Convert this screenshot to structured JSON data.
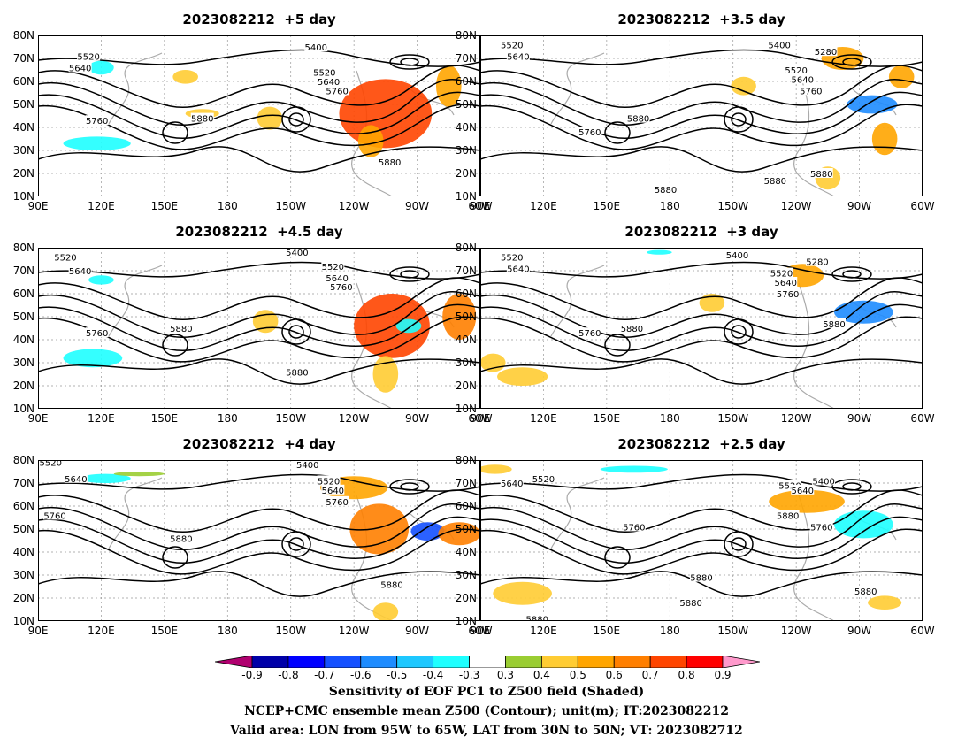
{
  "panels": [
    {
      "title": "2023082212  +5 day",
      "contour_labels": [
        {
          "text": "5520",
          "lon": 114,
          "lat": 71
        },
        {
          "text": "5640",
          "lon": 110,
          "lat": 66
        },
        {
          "text": "5760",
          "lon": 118,
          "lat": 43
        },
        {
          "text": "5880",
          "lon": 168,
          "lat": 44
        },
        {
          "text": "5400",
          "lon": 222,
          "lat": 75
        },
        {
          "text": "5520",
          "lon": 226,
          "lat": 64
        },
        {
          "text": "5640",
          "lon": 228,
          "lat": 60
        },
        {
          "text": "5760",
          "lon": 232,
          "lat": 56
        },
        {
          "text": "5880",
          "lon": 257,
          "lat": 25
        }
      ],
      "shading": [
        {
          "lon": 255,
          "lat": 46,
          "w": 22,
          "h": 30,
          "value": 0.7
        },
        {
          "lon": 248,
          "lat": 34,
          "w": 6,
          "h": 14,
          "value": 0.5
        },
        {
          "lon": 118,
          "lat": 33,
          "w": 16,
          "h": 6,
          "value": -0.4
        },
        {
          "lon": 120,
          "lat": 66,
          "w": 6,
          "h": 6,
          "value": -0.4
        },
        {
          "lon": 168,
          "lat": 46,
          "w": 8,
          "h": 4,
          "value": 0.4
        },
        {
          "lon": 200,
          "lat": 44,
          "w": 6,
          "h": 10,
          "value": 0.4
        },
        {
          "lon": 285,
          "lat": 58,
          "w": 6,
          "h": 18,
          "value": 0.5
        },
        {
          "lon": 160,
          "lat": 62,
          "w": 6,
          "h": 6,
          "value": 0.4
        }
      ]
    },
    {
      "title": "2023082212  +3.5 day",
      "contour_labels": [
        {
          "text": "5520",
          "lon": 105,
          "lat": 76
        },
        {
          "text": "5640",
          "lon": 108,
          "lat": 71
        },
        {
          "text": "5760",
          "lon": 142,
          "lat": 38
        },
        {
          "text": "5880",
          "lon": 165,
          "lat": 44
        },
        {
          "text": "5400",
          "lon": 232,
          "lat": 76
        },
        {
          "text": "5520",
          "lon": 240,
          "lat": 65
        },
        {
          "text": "5640",
          "lon": 243,
          "lat": 61
        },
        {
          "text": "5760",
          "lon": 247,
          "lat": 56
        },
        {
          "text": "5280",
          "lon": 254,
          "lat": 73
        },
        {
          "text": "5880",
          "lon": 230,
          "lat": 17
        },
        {
          "text": "5880",
          "lon": 178,
          "lat": 13
        },
        {
          "text": "5880",
          "lon": 252,
          "lat": 20
        }
      ],
      "shading": [
        {
          "lon": 276,
          "lat": 50,
          "w": 12,
          "h": 8,
          "value": -0.6
        },
        {
          "lon": 262,
          "lat": 70,
          "w": 10,
          "h": 10,
          "value": 0.5
        },
        {
          "lon": 215,
          "lat": 58,
          "w": 6,
          "h": 8,
          "value": 0.4
        },
        {
          "lon": 282,
          "lat": 35,
          "w": 6,
          "h": 14,
          "value": 0.5
        },
        {
          "lon": 255,
          "lat": 18,
          "w": 6,
          "h": 10,
          "value": 0.4
        },
        {
          "lon": 290,
          "lat": 62,
          "w": 6,
          "h": 10,
          "value": 0.5
        }
      ]
    },
    {
      "title": "2023082212  +4.5 day",
      "contour_labels": [
        {
          "text": "5520",
          "lon": 103,
          "lat": 76
        },
        {
          "text": "5640",
          "lon": 110,
          "lat": 70
        },
        {
          "text": "5760",
          "lon": 118,
          "lat": 43
        },
        {
          "text": "5880",
          "lon": 158,
          "lat": 45
        },
        {
          "text": "5400",
          "lon": 213,
          "lat": 78
        },
        {
          "text": "5520",
          "lon": 230,
          "lat": 72
        },
        {
          "text": "5640",
          "lon": 232,
          "lat": 67
        },
        {
          "text": "5760",
          "lon": 234,
          "lat": 63
        },
        {
          "text": "5880",
          "lon": 213,
          "lat": 26
        }
      ],
      "shading": [
        {
          "lon": 258,
          "lat": 46,
          "w": 18,
          "h": 28,
          "value": 0.7
        },
        {
          "lon": 255,
          "lat": 25,
          "w": 6,
          "h": 16,
          "value": 0.4
        },
        {
          "lon": 116,
          "lat": 32,
          "w": 14,
          "h": 8,
          "value": -0.4
        },
        {
          "lon": 120,
          "lat": 66,
          "w": 6,
          "h": 4,
          "value": -0.4
        },
        {
          "lon": 198,
          "lat": 48,
          "w": 6,
          "h": 10,
          "value": 0.4
        },
        {
          "lon": 290,
          "lat": 50,
          "w": 8,
          "h": 20,
          "value": 0.6
        },
        {
          "lon": 266,
          "lat": 46,
          "w": 6,
          "h": 6,
          "value": -0.4
        }
      ]
    },
    {
      "title": "2023082212  +3 day",
      "contour_labels": [
        {
          "text": "5520",
          "lon": 105,
          "lat": 76
        },
        {
          "text": "5640",
          "lon": 108,
          "lat": 71
        },
        {
          "text": "5760",
          "lon": 142,
          "lat": 43
        },
        {
          "text": "5880",
          "lon": 162,
          "lat": 45
        },
        {
          "text": "5400",
          "lon": 212,
          "lat": 77
        },
        {
          "text": "5520",
          "lon": 233,
          "lat": 69
        },
        {
          "text": "5640",
          "lon": 235,
          "lat": 65
        },
        {
          "text": "5760",
          "lon": 236,
          "lat": 60
        },
        {
          "text": "5280",
          "lon": 250,
          "lat": 74
        },
        {
          "text": "5880",
          "lon": 258,
          "lat": 47
        }
      ],
      "shading": [
        {
          "lon": 272,
          "lat": 52,
          "w": 14,
          "h": 10,
          "value": -0.6
        },
        {
          "lon": 243,
          "lat": 68,
          "w": 10,
          "h": 10,
          "value": 0.5
        },
        {
          "lon": 200,
          "lat": 56,
          "w": 6,
          "h": 8,
          "value": 0.4
        },
        {
          "lon": 110,
          "lat": 24,
          "w": 12,
          "h": 8,
          "value": 0.4
        },
        {
          "lon": 96,
          "lat": 30,
          "w": 6,
          "h": 8,
          "value": 0.4
        },
        {
          "lon": 175,
          "lat": 78,
          "w": 6,
          "h": 2,
          "value": -0.4
        }
      ]
    },
    {
      "title": "2023082212  +4 day",
      "contour_labels": [
        {
          "text": "5520",
          "lon": 96,
          "lat": 79
        },
        {
          "text": "5640",
          "lon": 108,
          "lat": 72
        },
        {
          "text": "5760",
          "lon": 98,
          "lat": 56
        },
        {
          "text": "5880",
          "lon": 158,
          "lat": 46
        },
        {
          "text": "5400",
          "lon": 218,
          "lat": 78
        },
        {
          "text": "5520",
          "lon": 228,
          "lat": 71
        },
        {
          "text": "5640",
          "lon": 230,
          "lat": 67
        },
        {
          "text": "5760",
          "lon": 232,
          "lat": 62
        },
        {
          "text": "5880",
          "lon": 258,
          "lat": 26
        }
      ],
      "shading": [
        {
          "lon": 252,
          "lat": 50,
          "w": 14,
          "h": 22,
          "value": 0.6
        },
        {
          "lon": 275,
          "lat": 49,
          "w": 8,
          "h": 8,
          "value": -0.7
        },
        {
          "lon": 122,
          "lat": 72,
          "w": 12,
          "h": 4,
          "value": -0.4
        },
        {
          "lon": 290,
          "lat": 48,
          "w": 10,
          "h": 10,
          "value": 0.6
        },
        {
          "lon": 240,
          "lat": 68,
          "w": 16,
          "h": 10,
          "value": 0.5
        },
        {
          "lon": 255,
          "lat": 14,
          "w": 6,
          "h": 8,
          "value": 0.4
        },
        {
          "lon": 138,
          "lat": 74,
          "w": 12,
          "h": 2,
          "value": 0.3
        }
      ]
    },
    {
      "title": "2023082212  +2.5 day",
      "contour_labels": [
        {
          "text": "5520",
          "lon": 120,
          "lat": 72
        },
        {
          "text": "5640",
          "lon": 105,
          "lat": 70
        },
        {
          "text": "5760",
          "lon": 163,
          "lat": 51
        },
        {
          "text": "5880",
          "lon": 236,
          "lat": 56
        },
        {
          "text": "5400",
          "lon": 253,
          "lat": 71
        },
        {
          "text": "5520",
          "lon": 237,
          "lat": 69
        },
        {
          "text": "5640",
          "lon": 243,
          "lat": 67
        },
        {
          "text": "5760",
          "lon": 252,
          "lat": 51
        },
        {
          "text": "5880",
          "lon": 195,
          "lat": 29
        },
        {
          "text": "5880",
          "lon": 190,
          "lat": 18
        },
        {
          "text": "5880",
          "lon": 273,
          "lat": 23
        },
        {
          "text": "5880",
          "lon": 117,
          "lat": 11
        }
      ],
      "shading": [
        {
          "lon": 272,
          "lat": 52,
          "w": 14,
          "h": 12,
          "value": -0.4
        },
        {
          "lon": 245,
          "lat": 62,
          "w": 18,
          "h": 10,
          "value": 0.5
        },
        {
          "lon": 163,
          "lat": 76,
          "w": 16,
          "h": 3,
          "value": -0.4
        },
        {
          "lon": 110,
          "lat": 22,
          "w": 14,
          "h": 10,
          "value": 0.4
        },
        {
          "lon": 97,
          "lat": 76,
          "w": 8,
          "h": 4,
          "value": 0.4
        },
        {
          "lon": 282,
          "lat": 18,
          "w": 8,
          "h": 6,
          "value": 0.4
        }
      ]
    }
  ],
  "lon_ticks": [
    "90E",
    "120E",
    "150E",
    "180",
    "150W",
    "120W",
    "90W",
    "60W"
  ],
  "lat_ticks": [
    "80N",
    "70N",
    "60N",
    "50N",
    "40N",
    "30N",
    "20N",
    "10N"
  ],
  "colorbar": {
    "labels": [
      "-0.9",
      "-0.8",
      "-0.7",
      "-0.6",
      "-0.5",
      "-0.4",
      "-0.3",
      "0.3",
      "0.4",
      "0.5",
      "0.6",
      "0.7",
      "0.8",
      "0.9"
    ],
    "colors": [
      "#b0006f",
      "#0000a8",
      "#0000ff",
      "#1450ff",
      "#1e8cff",
      "#1ec8ff",
      "#1effff",
      "#ffffff",
      "#9acd32",
      "#ffcc33",
      "#ffa500",
      "#ff7f00",
      "#ff4500",
      "#ff0000",
      "#ff99cc"
    ]
  },
  "captions": [
    "Sensitivity of EOF PC1 to Z500 field (Shaded)",
    "NCEP+CMC ensemble mean Z500 (Contour); unit(m); IT:2023082212",
    "Valid area: LON from 95W to 65W, LAT from 30N to 50N; VT: 2023082712"
  ]
}
